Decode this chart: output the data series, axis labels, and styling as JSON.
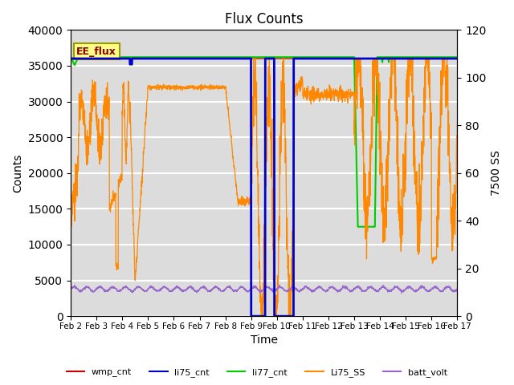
{
  "title": "Flux Counts",
  "xlabel": "Time",
  "ylabel_left": "Counts",
  "ylabel_right": "7500 SS",
  "ylim_left": [
    0,
    40000
  ],
  "ylim_right": [
    0,
    120
  ],
  "xtick_labels": [
    "Feb 2",
    "Feb 3",
    "Feb 4",
    "Feb 5",
    "Feb 6",
    "Feb 7",
    "Feb 8",
    "Feb 9",
    "Feb 10",
    "Feb 11",
    "Feb 12",
    "Feb 13",
    "Feb 14",
    "Feb 15",
    "Feb 16",
    "Feb 17"
  ],
  "annotation_text": "EE_flux",
  "annotation_box_color": "#FFFF88",
  "annotation_border_color": "#999900",
  "bg_color": "#DCDCDC",
  "bg_top_color": "#E8E8E8",
  "grid_color": "white",
  "line_colors": {
    "wmp_cnt": "#CC0000",
    "li75_cnt": "#0000CC",
    "li77_cnt": "#00CC00",
    "Li75_SS": "#FF8800",
    "batt_volt": "#9966CC"
  },
  "legend_colors": [
    "#CC0000",
    "#0000CC",
    "#00CC00",
    "#FF8800",
    "#9966CC"
  ],
  "legend_items": [
    "wmp_cnt",
    "li75_cnt",
    "li77_cnt",
    "Li75_SS",
    "batt_volt"
  ]
}
